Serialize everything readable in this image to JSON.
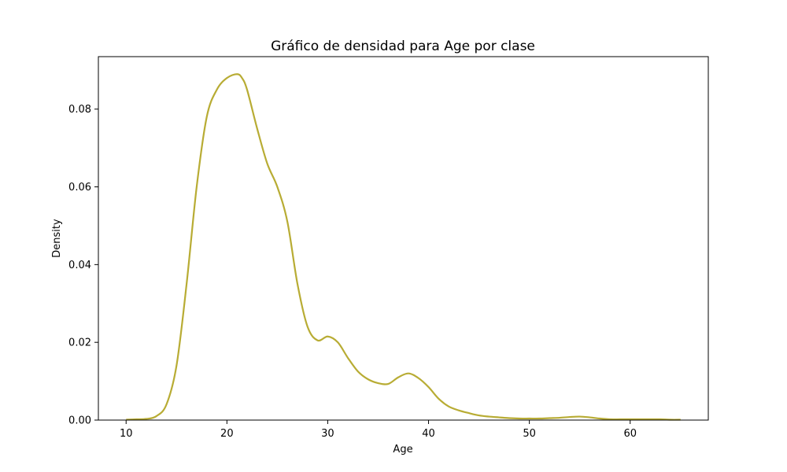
{
  "chart_data": {
    "type": "line",
    "title": "Gráfico de densidad para Age por clase",
    "xlabel": "Age",
    "ylabel": "Density",
    "xlim": [
      7.25,
      67.75
    ],
    "ylim": [
      0,
      0.0935
    ],
    "xticks": [
      10,
      20,
      30,
      40,
      50,
      60
    ],
    "yticks": [
      0.0,
      0.02,
      0.04,
      0.06,
      0.08
    ],
    "ytick_labels": [
      "0.00",
      "0.02",
      "0.04",
      "0.06",
      "0.08"
    ],
    "grid": false,
    "series": [
      {
        "color": "#b8ac34",
        "x": [
          10,
          11,
          12,
          13,
          14,
          15,
          16,
          17,
          18,
          19,
          20,
          21,
          21.5,
          22,
          23,
          24,
          25,
          26,
          27,
          28,
          29,
          30,
          31,
          32,
          33,
          34,
          35,
          36,
          37,
          38,
          39,
          40,
          41,
          42,
          43,
          44,
          45,
          46,
          47,
          48,
          49,
          50,
          51,
          52,
          53,
          54,
          55,
          56,
          57,
          58,
          59,
          60,
          61,
          62,
          63,
          64,
          65
        ],
        "y": [
          0.0001,
          0.0002,
          0.0003,
          0.001,
          0.004,
          0.014,
          0.035,
          0.06,
          0.078,
          0.085,
          0.088,
          0.089,
          0.088,
          0.085,
          0.075,
          0.066,
          0.06,
          0.051,
          0.035,
          0.024,
          0.0205,
          0.0215,
          0.02,
          0.016,
          0.0125,
          0.0105,
          0.0095,
          0.0093,
          0.011,
          0.012,
          0.0108,
          0.0085,
          0.0055,
          0.0035,
          0.0025,
          0.0018,
          0.0012,
          0.0009,
          0.0007,
          0.0005,
          0.0004,
          0.0004,
          0.0004,
          0.0005,
          0.0006,
          0.0008,
          0.0009,
          0.0007,
          0.0004,
          0.0002,
          0.0002,
          0.0002,
          0.0002,
          0.0002,
          0.0002,
          0.0001,
          0.0001
        ]
      }
    ]
  }
}
